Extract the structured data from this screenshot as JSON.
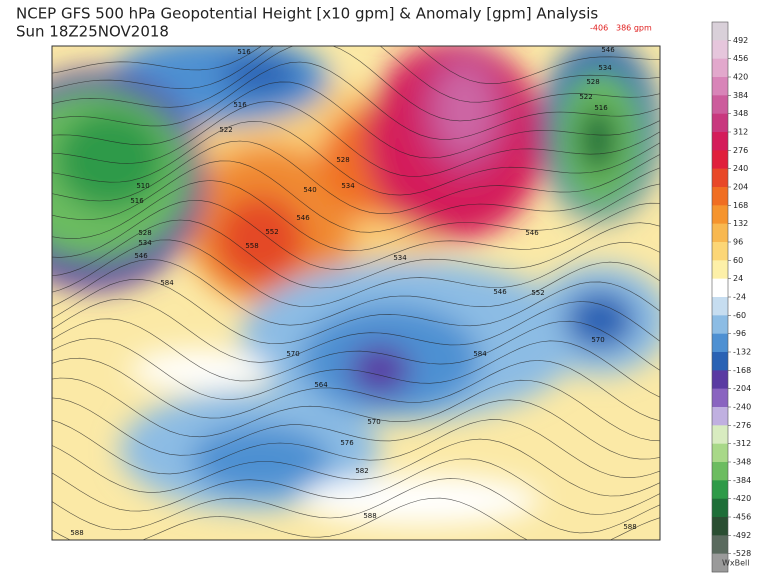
{
  "header": {
    "title": "NCEP GFS 500 hPa Geopotential Height [x10 gpm] & Anomaly [gpm] Analysis",
    "subtitle": "Sun 18Z25NOV2018",
    "min": "-406",
    "max": "386 gpm"
  },
  "contour_labels": [
    "516",
    "516",
    "522",
    "510",
    "516",
    "528",
    "534",
    "546",
    "584",
    "540",
    "534",
    "528",
    "546",
    "552",
    "558",
    "534",
    "546",
    "552",
    "570",
    "584",
    "570",
    "564",
    "570",
    "576",
    "582",
    "588",
    "588",
    "588",
    "546",
    "534",
    "528",
    "522",
    "516",
    "546"
  ],
  "colorbar": {
    "labels": [
      "492",
      "456",
      "420",
      "384",
      "348",
      "312",
      "276",
      "240",
      "204",
      "168",
      "132",
      "96",
      "60",
      "24",
      "-24",
      "-60",
      "-96",
      "-132",
      "-168",
      "-204",
      "-240",
      "-276",
      "-312",
      "-348",
      "-384",
      "-420",
      "-456",
      "-492",
      "-528"
    ],
    "colors": [
      "#d9d0d9",
      "#e6c6dc",
      "#e2a8cc",
      "#d884b8",
      "#cc5c9c",
      "#c8387e",
      "#d41c5a",
      "#e0203c",
      "#e84828",
      "#f06e22",
      "#f5942e",
      "#f8b850",
      "#fcd676",
      "#fdf0a8",
      "#ffffff",
      "#c6ddf0",
      "#8cbce4",
      "#4e90d2",
      "#2a62b4",
      "#5a3aa2",
      "#8a64c0",
      "#c0b0e0",
      "#d8ecc0",
      "#a8d888",
      "#6cbc60",
      "#2e9a48",
      "#1e6e38",
      "#2a4e32",
      "#5a6a5e",
      "#9a9a9a"
    ]
  },
  "footer": {
    "brand": "WxBell"
  }
}
